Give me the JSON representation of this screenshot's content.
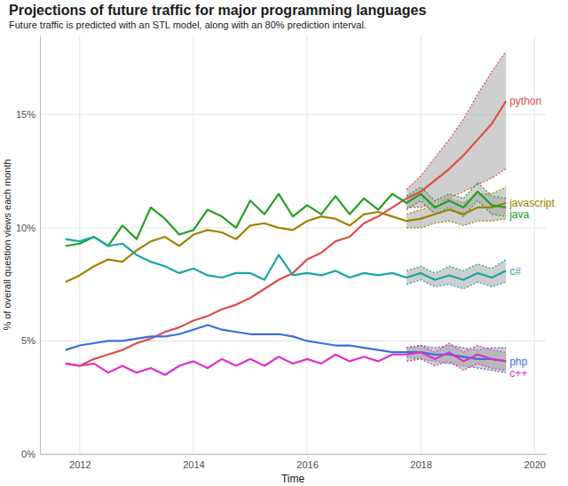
{
  "chart_data": {
    "type": "line",
    "title": "Projections of future traffic for major programming languages",
    "subtitle": "Future traffic is predicted with an STL model, along with an 80% prediction interval.",
    "x_label": "Time",
    "y_label": "% of overall question views each month",
    "x": [
      2011.75,
      2012,
      2012.25,
      2012.5,
      2012.75,
      2013,
      2013.25,
      2013.5,
      2013.75,
      2014,
      2014.25,
      2014.5,
      2014.75,
      2015,
      2015.25,
      2015.5,
      2015.75,
      2016,
      2016.25,
      2016.5,
      2016.75,
      2017,
      2017.25,
      2017.5,
      2017.75,
      2018,
      2018.25,
      2018.5,
      2018.75,
      2019,
      2019.25,
      2019.5
    ],
    "xlim": [
      2011.3,
      2020.2
    ],
    "xticks": [
      2012,
      2014,
      2016,
      2018,
      2020
    ],
    "ylim": [
      0,
      18.5
    ],
    "yticks": [
      {
        "value": 0,
        "label": "0%"
      },
      {
        "value": 5,
        "label": "5%"
      },
      {
        "value": 10,
        "label": "10%"
      },
      {
        "value": 15,
        "label": "15%"
      }
    ],
    "grid": true,
    "series": [
      {
        "name": "python",
        "color": "#e04b4b",
        "values": [
          4.0,
          3.9,
          4.2,
          4.4,
          4.6,
          4.9,
          5.1,
          5.4,
          5.6,
          5.9,
          6.1,
          6.4,
          6.6,
          6.9,
          7.3,
          7.7,
          8.0,
          8.6,
          8.9,
          9.4,
          9.6,
          10.2,
          10.5,
          10.9,
          11.3,
          11.6,
          12.1,
          12.6,
          13.2,
          13.9,
          14.6,
          15.6
        ],
        "lower": [
          null,
          null,
          null,
          null,
          null,
          null,
          null,
          null,
          null,
          null,
          null,
          null,
          null,
          null,
          null,
          null,
          null,
          null,
          null,
          null,
          null,
          null,
          null,
          null,
          10.9,
          10.9,
          11.1,
          11.3,
          11.6,
          11.9,
          12.2,
          12.6
        ],
        "upper": [
          null,
          null,
          null,
          null,
          null,
          null,
          null,
          null,
          null,
          null,
          null,
          null,
          null,
          null,
          null,
          null,
          null,
          null,
          null,
          null,
          null,
          null,
          null,
          null,
          11.7,
          12.3,
          13.1,
          13.9,
          14.8,
          15.9,
          16.9,
          17.8
        ]
      },
      {
        "name": "javascript",
        "color": "#a08200",
        "values": [
          7.6,
          7.9,
          8.3,
          8.6,
          8.5,
          9.0,
          9.4,
          9.6,
          9.2,
          9.7,
          9.9,
          9.8,
          9.5,
          10.1,
          10.2,
          10.0,
          9.9,
          10.3,
          10.5,
          10.4,
          10.1,
          10.6,
          10.7,
          10.5,
          10.3,
          10.4,
          10.6,
          10.8,
          10.6,
          10.9,
          10.9,
          11.1
        ],
        "lower": [
          null,
          null,
          null,
          null,
          null,
          null,
          null,
          null,
          null,
          null,
          null,
          null,
          null,
          null,
          null,
          null,
          null,
          null,
          null,
          null,
          null,
          null,
          null,
          null,
          10.0,
          10.0,
          10.2,
          10.3,
          10.1,
          10.3,
          10.3,
          10.4
        ],
        "upper": [
          null,
          null,
          null,
          null,
          null,
          null,
          null,
          null,
          null,
          null,
          null,
          null,
          null,
          null,
          null,
          null,
          null,
          null,
          null,
          null,
          null,
          null,
          null,
          null,
          10.6,
          10.8,
          11.0,
          11.3,
          11.1,
          11.5,
          11.5,
          11.8
        ]
      },
      {
        "name": "java",
        "color": "#22a022",
        "values": [
          9.2,
          9.3,
          9.6,
          9.2,
          10.1,
          9.5,
          10.9,
          10.4,
          9.7,
          9.9,
          10.8,
          10.5,
          10.0,
          11.2,
          10.6,
          11.5,
          10.5,
          11.0,
          10.6,
          11.4,
          10.6,
          11.3,
          10.8,
          11.5,
          11.1,
          11.5,
          10.9,
          11.2,
          10.9,
          11.6,
          11.0,
          10.9
        ],
        "lower": [
          null,
          null,
          null,
          null,
          null,
          null,
          null,
          null,
          null,
          null,
          null,
          null,
          null,
          null,
          null,
          null,
          null,
          null,
          null,
          null,
          null,
          null,
          null,
          null,
          10.8,
          11.2,
          10.6,
          10.9,
          10.5,
          11.2,
          10.6,
          10.5
        ],
        "upper": [
          null,
          null,
          null,
          null,
          null,
          null,
          null,
          null,
          null,
          null,
          null,
          null,
          null,
          null,
          null,
          null,
          null,
          null,
          null,
          null,
          null,
          null,
          null,
          null,
          11.4,
          11.8,
          11.2,
          11.5,
          11.3,
          12.0,
          11.4,
          11.3
        ]
      },
      {
        "name": "c#",
        "color": "#1aa6a6",
        "values": [
          9.5,
          9.4,
          9.6,
          9.2,
          9.3,
          8.8,
          8.5,
          8.3,
          8.0,
          8.2,
          7.9,
          7.8,
          8.0,
          8.0,
          7.7,
          8.8,
          7.9,
          8.0,
          7.9,
          8.1,
          7.8,
          8.0,
          7.9,
          8.0,
          7.8,
          8.0,
          7.7,
          7.9,
          7.7,
          8.0,
          7.8,
          8.1
        ],
        "lower": [
          null,
          null,
          null,
          null,
          null,
          null,
          null,
          null,
          null,
          null,
          null,
          null,
          null,
          null,
          null,
          null,
          null,
          null,
          null,
          null,
          null,
          null,
          null,
          null,
          7.5,
          7.7,
          7.4,
          7.5,
          7.3,
          7.6,
          7.4,
          7.6
        ],
        "upper": [
          null,
          null,
          null,
          null,
          null,
          null,
          null,
          null,
          null,
          null,
          null,
          null,
          null,
          null,
          null,
          null,
          null,
          null,
          null,
          null,
          null,
          null,
          null,
          null,
          8.1,
          8.3,
          8.0,
          8.3,
          8.1,
          8.4,
          8.2,
          8.6
        ]
      },
      {
        "name": "php",
        "color": "#3a6ee0",
        "values": [
          4.6,
          4.8,
          4.9,
          5.0,
          5.0,
          5.1,
          5.2,
          5.2,
          5.3,
          5.5,
          5.7,
          5.5,
          5.4,
          5.3,
          5.3,
          5.3,
          5.2,
          5.0,
          4.9,
          4.8,
          4.8,
          4.7,
          4.6,
          4.5,
          4.5,
          4.5,
          4.4,
          4.4,
          4.3,
          4.2,
          4.2,
          4.1
        ],
        "lower": [
          null,
          null,
          null,
          null,
          null,
          null,
          null,
          null,
          null,
          null,
          null,
          null,
          null,
          null,
          null,
          null,
          null,
          null,
          null,
          null,
          null,
          null,
          null,
          null,
          4.3,
          4.2,
          4.1,
          4.0,
          3.9,
          3.8,
          3.7,
          3.6
        ],
        "upper": [
          null,
          null,
          null,
          null,
          null,
          null,
          null,
          null,
          null,
          null,
          null,
          null,
          null,
          null,
          null,
          null,
          null,
          null,
          null,
          null,
          null,
          null,
          null,
          null,
          4.7,
          4.8,
          4.7,
          4.8,
          4.7,
          4.6,
          4.7,
          4.7
        ]
      },
      {
        "name": "c++",
        "color": "#e030cc",
        "values": [
          4.0,
          3.9,
          4.0,
          3.6,
          3.9,
          3.6,
          3.8,
          3.5,
          3.9,
          4.1,
          3.8,
          4.2,
          3.9,
          4.2,
          3.9,
          4.3,
          4.0,
          4.2,
          4.0,
          4.4,
          4.1,
          4.3,
          4.1,
          4.4,
          4.4,
          4.5,
          4.2,
          4.5,
          4.1,
          4.4,
          4.2,
          4.1
        ],
        "lower": [
          null,
          null,
          null,
          null,
          null,
          null,
          null,
          null,
          null,
          null,
          null,
          null,
          null,
          null,
          null,
          null,
          null,
          null,
          null,
          null,
          null,
          null,
          null,
          null,
          4.1,
          4.2,
          3.9,
          4.1,
          3.7,
          4.0,
          3.8,
          3.7
        ],
        "upper": [
          null,
          null,
          null,
          null,
          null,
          null,
          null,
          null,
          null,
          null,
          null,
          null,
          null,
          null,
          null,
          null,
          null,
          null,
          null,
          null,
          null,
          null,
          null,
          null,
          4.7,
          4.8,
          4.5,
          4.9,
          4.5,
          4.8,
          4.6,
          4.5
        ]
      }
    ]
  }
}
